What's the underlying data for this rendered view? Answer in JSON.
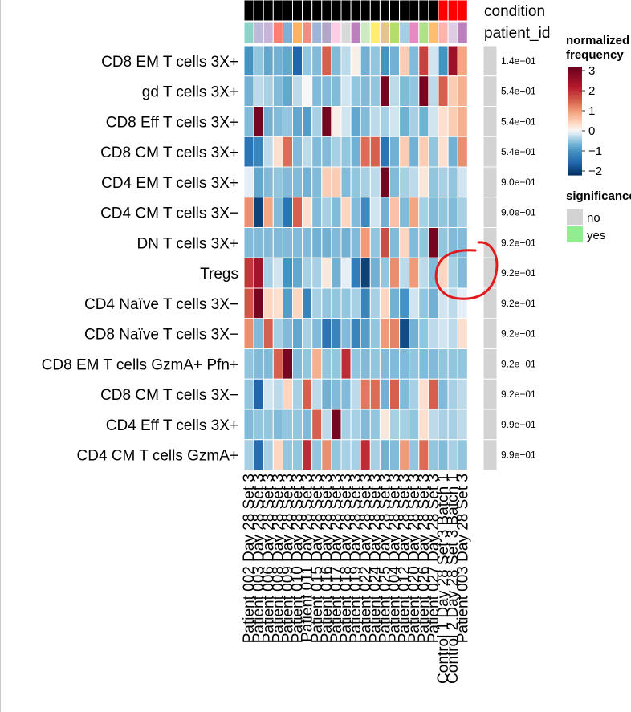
{
  "chart_data": {
    "type": "heatmap",
    "title": "",
    "annotation_labels": [
      "condition",
      "patient_id"
    ],
    "legend": {
      "title_line1": "normalized",
      "title_line2": "frequency",
      "ticks": [
        "3",
        "2",
        "1",
        "0",
        "−1",
        "−2"
      ],
      "tick_values": [
        3,
        2,
        1,
        0,
        -1,
        -2
      ],
      "range": [
        -2.2,
        3.2
      ]
    },
    "significance": {
      "title": "significance",
      "items": [
        {
          "label": "no",
          "color": "#d3d3d3"
        },
        {
          "label": "yes",
          "color": "#90ee90"
        }
      ]
    },
    "colors": {
      "high": "#67001f",
      "mid": "#f7f7f7",
      "low": "#053061",
      "condition_a": "#000000",
      "condition_b": "#ff0000",
      "nonsig": "#d3d3d3",
      "circle": "#e31a1c"
    },
    "columns": [
      "Patient 002 Day 28 Set 3",
      "Patient 003 Day 28 Set 3",
      "Patient 006 Day 28 Set 3",
      "Patient 008 Day 28 Set 3",
      "Patient 009 Day 28 Set 3",
      "Patient 010 Day 28 Set 3",
      "Patient 011 Day 28 Set 3",
      "Patient 015 Day 28 Set 3",
      "Patient 016 Day 28 Set 3",
      "Patient 017 Day 28 Set 3",
      "Patient 018 Day 28 Set 3",
      "Patient 019 Day 28 Set 3",
      "Patient 022 Day 28 Set 3",
      "Patient 024 Day 28 Set 3",
      "Patient 025 Day 28 Set 3",
      "Patient 004 Day 28 Set 3",
      "Patient 012 Day 28 Set 3",
      "Patient 020 Day 28 Set 3",
      "Patient 026 Day 28 Set 3",
      "Patient 027 Day 28 Set 3",
      "Control 1 Day 28 Set 3 Batch 1",
      "Control 2 Day 28 Set 3 Batch 1",
      "Patient 003 Day 28 Set 3"
    ],
    "condition": [
      "A",
      "A",
      "A",
      "A",
      "A",
      "A",
      "A",
      "A",
      "A",
      "A",
      "A",
      "A",
      "A",
      "A",
      "A",
      "A",
      "A",
      "A",
      "A",
      "A",
      "B",
      "B",
      "B"
    ],
    "patient_colors": [
      "#8dd3c7",
      "#bebada",
      "#c6b5d9",
      "#fb8072",
      "#80b1d3",
      "#fdb462",
      "#f18f82",
      "#9eb5d8",
      "#b3a6c9",
      "#fccde5",
      "#d9d9d9",
      "#bc80bd",
      "#ccebc5",
      "#ffed6f",
      "#e5c494",
      "#b3de69",
      "#a6cee3",
      "#e78ac3",
      "#b2df8a",
      "#fdbf6f",
      "#fbb4ae",
      "#decbe4",
      "#bc80bd"
    ],
    "rows": [
      {
        "label": "CD8 EM T cells 3X+",
        "pvalue": "1.4e−01",
        "significant": false,
        "values": [
          -1.0,
          -0.5,
          -0.8,
          -0.7,
          -0.8,
          -1.6,
          -0.5,
          -0.6,
          1.5,
          -0.6,
          -0.3,
          0.1,
          -0.7,
          -0.5,
          -1.0,
          -0.7,
          0.5,
          -0.6,
          1.8,
          -0.2,
          -1.0,
          2.5,
          0.9
        ]
      },
      {
        "label": "gd T cells 3X+",
        "pvalue": "5.4e−01",
        "significant": false,
        "values": [
          -0.7,
          -0.3,
          -0.4,
          -0.6,
          -0.8,
          -0.3,
          0.0,
          -0.6,
          -0.6,
          -0.6,
          -0.2,
          -0.5,
          -0.6,
          -0.5,
          3.0,
          -0.3,
          -0.6,
          -0.5,
          3.0,
          -0.3,
          1.5,
          0.5,
          0.8
        ]
      },
      {
        "label": "CD8 Eff T cells 3X+",
        "pvalue": "5.4e−01",
        "significant": false,
        "values": [
          -0.6,
          3.0,
          -0.7,
          -0.6,
          -0.5,
          -0.8,
          -0.9,
          -0.4,
          3.0,
          0.1,
          -0.2,
          -0.8,
          -0.6,
          -0.3,
          -0.4,
          -0.2,
          -0.7,
          -0.4,
          -0.7,
          -0.2,
          0.3,
          0.5,
          0.8
        ]
      },
      {
        "label": "CD8 CM T cells 3X+",
        "pvalue": "5.4e−01",
        "significant": false,
        "values": [
          -1.4,
          -1.2,
          -0.3,
          0.3,
          1.4,
          -0.6,
          -0.3,
          -0.6,
          -0.6,
          -0.4,
          -0.5,
          -0.7,
          1.4,
          1.5,
          -1.4,
          -0.7,
          0.5,
          -0.7,
          0.5,
          -0.5,
          0.3,
          -0.7,
          1.1
        ]
      },
      {
        "label": "CD4 EM T cells 3X+",
        "pvalue": "9.0e−01",
        "significant": false,
        "values": [
          -0.1,
          -0.8,
          -0.6,
          -0.5,
          -0.6,
          -0.6,
          -0.7,
          -0.6,
          0.5,
          0.5,
          -0.6,
          -0.5,
          -0.4,
          -0.3,
          3.0,
          -0.6,
          -0.4,
          -0.3,
          0.2,
          -0.5,
          -0.4,
          -0.5,
          -0.2
        ]
      },
      {
        "label": "CD4 CM T cells 3X−",
        "pvalue": "9.0e−01",
        "significant": false,
        "values": [
          1.1,
          -2.0,
          0.9,
          -0.6,
          -1.4,
          1.5,
          0.3,
          -0.6,
          -0.4,
          -0.6,
          0.4,
          -0.6,
          -1.1,
          -0.2,
          -0.7,
          0.6,
          -0.6,
          0.9,
          -0.4,
          -0.6,
          -0.5,
          -0.6,
          -0.4
        ]
      },
      {
        "label": "DN T cells 3X+",
        "pvalue": "9.2e−01",
        "significant": false,
        "values": [
          -0.6,
          -0.6,
          -0.6,
          -0.6,
          -0.6,
          -0.6,
          -0.6,
          -0.7,
          -0.7,
          -0.6,
          -0.7,
          -0.6,
          1.0,
          -0.5,
          1.7,
          -0.6,
          0.4,
          -0.6,
          -0.5,
          3.0,
          -0.5,
          -0.6,
          -0.6
        ]
      },
      {
        "label": "Tregs",
        "pvalue": "9.2e−01",
        "significant": false,
        "values": [
          1.9,
          2.4,
          -0.4,
          -0.2,
          -1.0,
          -0.8,
          -0.4,
          -0.4,
          0.2,
          -0.7,
          -0.1,
          -1.3,
          -2.0,
          -0.7,
          -0.5,
          1.1,
          -0.3,
          1.0,
          -0.3,
          -0.6,
          0.4,
          -0.4,
          -0.6
        ]
      },
      {
        "label": "CD4 Naïve T cells 3X−",
        "pvalue": "9.2e−01",
        "significant": false,
        "values": [
          1.6,
          3.0,
          0.4,
          0.3,
          -0.9,
          0.4,
          -1.2,
          -0.4,
          -0.5,
          -0.5,
          -0.5,
          -0.4,
          -1.2,
          -0.4,
          0.4,
          -0.7,
          -1.0,
          -0.2,
          -0.5,
          -0.7,
          -0.2,
          -0.3,
          -0.1
        ]
      },
      {
        "label": "CD8 Naïve T cells 3X−",
        "pvalue": "9.2e−01",
        "significant": false,
        "values": [
          1.1,
          -0.6,
          1.5,
          -0.4,
          -0.6,
          -0.8,
          -0.4,
          -0.6,
          -1.4,
          -1.2,
          -0.6,
          -1.2,
          -0.9,
          -0.5,
          1.0,
          1.2,
          -1.9,
          -0.7,
          -0.5,
          -0.3,
          -0.2,
          -0.3,
          0.3
        ]
      },
      {
        "label": "CD8 EM T cells GzmA+ Pfn+",
        "pvalue": "9.2e−01",
        "significant": false,
        "values": [
          -0.5,
          -0.6,
          -0.6,
          1.5,
          3.0,
          -0.6,
          -0.5,
          0.8,
          -0.5,
          -0.5,
          2.0,
          -0.5,
          -0.6,
          -0.5,
          -0.6,
          -0.6,
          -0.6,
          -0.5,
          -0.6,
          -0.6,
          -0.5,
          -0.5,
          -0.5
        ]
      },
      {
        "label": "CD8 CM T cells 3X−",
        "pvalue": "9.2e−01",
        "significant": false,
        "values": [
          -0.5,
          -1.6,
          -0.2,
          -0.3,
          0.4,
          -0.4,
          1.5,
          -0.3,
          -0.7,
          -0.6,
          -0.6,
          -0.3,
          1.3,
          1.4,
          -0.7,
          1.5,
          -0.6,
          -0.4,
          0.3,
          1.5,
          -0.6,
          -0.4,
          -0.3
        ]
      },
      {
        "label": "CD4 Eff T cells 3X+",
        "pvalue": "9.9e−01",
        "significant": false,
        "values": [
          -0.6,
          -0.5,
          -0.5,
          -0.6,
          -0.5,
          -0.5,
          -0.6,
          1.5,
          -0.3,
          3.0,
          -0.4,
          -0.4,
          -0.6,
          -0.5,
          0.2,
          -0.4,
          -0.4,
          -0.5,
          0.3,
          -0.3,
          -0.4,
          -0.4,
          -0.3
        ]
      },
      {
        "label": "CD4 CM T cells GzmA+",
        "pvalue": "9.9e−01",
        "significant": false,
        "values": [
          -0.4,
          -1.5,
          -0.4,
          0.4,
          -0.5,
          -0.5,
          2.0,
          -0.5,
          1.1,
          -0.5,
          -0.4,
          -0.4,
          2.0,
          -0.4,
          -0.7,
          -0.6,
          1.0,
          -0.5,
          1.4,
          -0.5,
          -0.6,
          -0.4,
          -0.5
        ]
      }
    ]
  }
}
